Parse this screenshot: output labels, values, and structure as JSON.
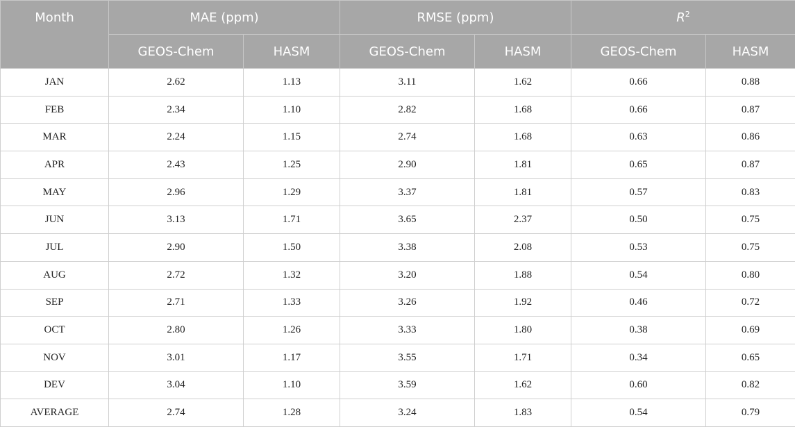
{
  "table": {
    "headers": {
      "month": "Month",
      "groups": [
        {
          "label": "MAE (ppm)"
        },
        {
          "label": "RMSE (ppm)"
        },
        {
          "label": "R",
          "sup": "2"
        }
      ],
      "sub": [
        "GEOS-Chem",
        "HASM",
        "GEOS-Chem",
        "HASM",
        "GEOS-Chem",
        "HASM"
      ]
    },
    "rows": [
      [
        "JAN",
        "2.62",
        "1.13",
        "3.11",
        "1.62",
        "0.66",
        "0.88"
      ],
      [
        "FEB",
        "2.34",
        "1.10",
        "2.82",
        "1.68",
        "0.66",
        "0.87"
      ],
      [
        "MAR",
        "2.24",
        "1.15",
        "2.74",
        "1.68",
        "0.63",
        "0.86"
      ],
      [
        "APR",
        "2.43",
        "1.25",
        "2.90",
        "1.81",
        "0.65",
        "0.87"
      ],
      [
        "MAY",
        "2.96",
        "1.29",
        "3.37",
        "1.81",
        "0.57",
        "0.83"
      ],
      [
        "JUN",
        "3.13",
        "1.71",
        "3.65",
        "2.37",
        "0.50",
        "0.75"
      ],
      [
        "JUL",
        "2.90",
        "1.50",
        "3.38",
        "2.08",
        "0.53",
        "0.75"
      ],
      [
        "AUG",
        "2.72",
        "1.32",
        "3.20",
        "1.88",
        "0.54",
        "0.80"
      ],
      [
        "SEP",
        "2.71",
        "1.33",
        "3.26",
        "1.92",
        "0.46",
        "0.72"
      ],
      [
        "OCT",
        "2.80",
        "1.26",
        "3.33",
        "1.80",
        "0.38",
        "0.69"
      ],
      [
        "NOV",
        "3.01",
        "1.17",
        "3.55",
        "1.71",
        "0.34",
        "0.65"
      ],
      [
        "DEV",
        "3.04",
        "1.10",
        "3.59",
        "1.62",
        "0.60",
        "0.82"
      ],
      [
        "AVERAGE",
        "2.74",
        "1.28",
        "3.24",
        "1.83",
        "0.54",
        "0.79"
      ]
    ]
  },
  "colors": {
    "header_bg": "#a7a7a7",
    "header_text": "#ffffff",
    "grid": "#cfcfcf"
  }
}
